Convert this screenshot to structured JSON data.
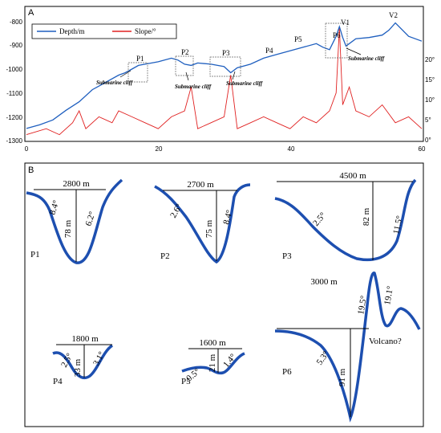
{
  "panel_a": {
    "label": "A",
    "legend_depth": "Depth/m",
    "legend_slope": "Slope/°",
    "left_ticks": [
      "-800",
      "-900",
      "-1000",
      "-1100",
      "-1200",
      "-1300"
    ],
    "right_ticks": [
      "20°",
      "15°",
      "10°",
      "5°",
      "0°"
    ],
    "x_ticks": [
      "0",
      "20",
      "40",
      "60"
    ],
    "profile_labels": [
      "P1",
      "P2",
      "P3",
      "P4",
      "P5",
      "P6",
      "V1",
      "V2"
    ],
    "cliff_label": "Submarine cliff",
    "colors": {
      "depth": "#1f5fbf",
      "slope": "#e02020"
    }
  },
  "panel_b": {
    "label": "B",
    "p1": {
      "name": "P1",
      "width": "2800 m",
      "depth": "78 m",
      "slope_left": "8.4°",
      "slope_right": "6.2°"
    },
    "p2": {
      "name": "P2",
      "width": "2700 m",
      "depth": "75 m",
      "slope_left": "2.6°",
      "slope_right": "8.4°"
    },
    "p3": {
      "name": "P3",
      "width": "4500 m",
      "depth": "82 m",
      "slope_left": "2.5°",
      "slope_right": "11.5°"
    },
    "p4": {
      "name": "P4",
      "width": "1800 m",
      "depth": "33 m",
      "slope_left": "2.5°",
      "slope_right": "3.1°"
    },
    "p5": {
      "name": "P5",
      "width": "1600 m",
      "depth": "21 m",
      "slope_left": "0.5°",
      "slope_right": "1.4°"
    },
    "p6": {
      "name": "P6",
      "width": "3000 m",
      "depth": "91 m",
      "slope_left": "5.3°",
      "slope_right": "19.5°",
      "slope_far": "19.1°",
      "note": "Volcano?"
    },
    "profile_color": "#1d4fb0"
  },
  "chart_data": [
    {
      "type": "line",
      "title": "",
      "xlabel": "",
      "ylabel": "",
      "xlim": [
        0,
        60
      ],
      "ylim": [
        -1300,
        -760
      ],
      "y2lim": [
        0,
        22
      ],
      "series": [
        {
          "name": "Depth/m",
          "axis": "left",
          "x": [
            0,
            2,
            4,
            6,
            8,
            10,
            12,
            14,
            15,
            16,
            17,
            18,
            20,
            22,
            23,
            24,
            25,
            26,
            28,
            30,
            31,
            32,
            34,
            36,
            38,
            40,
            42,
            44,
            45,
            46,
            47,
            47.5,
            48,
            48.5,
            49,
            50,
            52,
            54,
            55,
            56,
            58,
            60
          ],
          "values": [
            -1250,
            -1235,
            -1215,
            -1175,
            -1140,
            -1090,
            -1060,
            -1030,
            -1020,
            -1005,
            -990,
            -985,
            -975,
            -960,
            -968,
            -985,
            -990,
            -980,
            -985,
            -995,
            -1020,
            -1000,
            -985,
            -960,
            -945,
            -930,
            -915,
            -900,
            -915,
            -925,
            -870,
            -830,
            -875,
            -910,
            -900,
            -880,
            -875,
            -865,
            -845,
            -815,
            -870,
            -890
          ]
        },
        {
          "name": "Slope/°",
          "axis": "right",
          "x": [
            0,
            3,
            5,
            7,
            8,
            9,
            11,
            13,
            14,
            16,
            18,
            20,
            22,
            24,
            25,
            26,
            28,
            30,
            31,
            32,
            34,
            36,
            38,
            40,
            42,
            44,
            46,
            47,
            47.5,
            48,
            49,
            50,
            52,
            54,
            56,
            58,
            60
          ],
          "values": [
            1,
            2,
            1,
            3,
            5,
            2,
            4,
            3,
            5,
            4,
            3,
            2,
            4,
            5,
            9,
            2,
            3,
            4,
            11,
            2,
            3,
            4,
            3,
            2,
            4,
            3,
            5,
            8,
            19,
            6,
            9,
            5,
            4,
            6,
            3,
            4,
            2
          ]
        }
      ]
    }
  ]
}
